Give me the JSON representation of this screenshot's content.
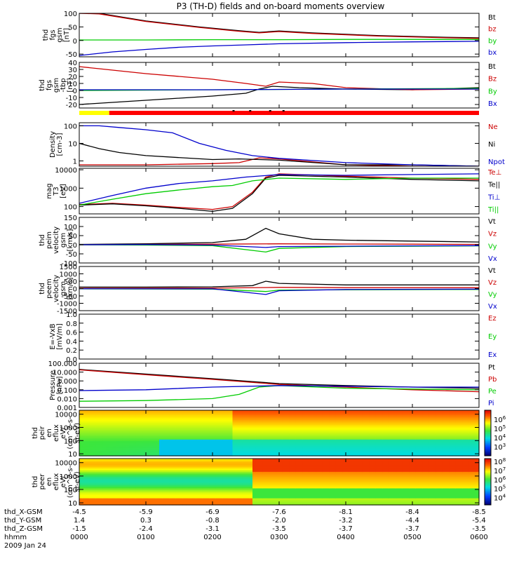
{
  "title": "P3 (TH-D) fields and on-board moments overview",
  "chart_data": [
    {
      "type": "line",
      "panel": "fgs-gsm",
      "ylabel": [
        "thd",
        "fgs",
        "gsm",
        "[nT]"
      ],
      "ylim": [
        -60,
        100
      ],
      "ticks": [
        "100",
        "50",
        "0",
        "-50"
      ],
      "tick_values": [
        100,
        50,
        0,
        -50
      ],
      "series": [
        {
          "name": "Bt",
          "color": "#000000",
          "x": [
            0.0,
            0.3,
            1.0,
            1.8,
            2.4,
            2.7,
            3.0,
            3.5,
            4.5,
            5.5,
            6.0
          ],
          "values": [
            100,
            100,
            72,
            50,
            36,
            30,
            35,
            28,
            18,
            12,
            10
          ]
        },
        {
          "name": "bz",
          "color": "#cc0000",
          "x": [
            0.0,
            0.3,
            1.0,
            1.8,
            2.4,
            2.7,
            3.0,
            3.5,
            4.5,
            5.5,
            6.0
          ],
          "values": [
            100,
            98,
            70,
            48,
            34,
            28,
            33,
            26,
            16,
            10,
            8
          ]
        },
        {
          "name": "by",
          "color": "#00cc00",
          "x": [
            0.0,
            1.0,
            2.0,
            3.0,
            4.0,
            5.0,
            6.0
          ],
          "values": [
            2,
            2,
            3,
            3,
            4,
            4,
            4
          ]
        },
        {
          "name": "bx",
          "color": "#0000cc",
          "x": [
            0.0,
            0.5,
            1.0,
            1.5,
            2.0,
            2.5,
            3.0,
            4.0,
            5.0,
            6.0
          ],
          "values": [
            -55,
            -42,
            -33,
            -25,
            -20,
            -16,
            -12,
            -8,
            -5,
            -3
          ]
        }
      ]
    },
    {
      "type": "line",
      "panel": "fgs-gsm-tbp",
      "ylabel": [
        "thd",
        "fgs",
        "gsm",
        "-tbp",
        "[nT]"
      ],
      "ylim": [
        -25,
        40
      ],
      "ticks": [
        "40",
        "30",
        "20",
        "10",
        "0",
        "-10",
        "-20"
      ],
      "tick_values": [
        40,
        30,
        20,
        10,
        0,
        -10,
        -20
      ],
      "series": [
        {
          "name": "Bt",
          "color": "#000000",
          "x": [
            0.0,
            1.0,
            2.0,
            2.5,
            2.7,
            2.9,
            3.3,
            4.0,
            5.0,
            6.0
          ],
          "values": [
            -20,
            -14,
            -8,
            -4,
            2,
            6,
            4,
            2,
            1,
            4
          ]
        },
        {
          "name": "Bz",
          "color": "#cc0000",
          "x": [
            0.0,
            0.3,
            1.0,
            2.0,
            2.5,
            2.8,
            3.0,
            3.5,
            4.0,
            5.0,
            6.0
          ],
          "values": [
            34,
            31,
            24,
            16,
            10,
            6,
            12,
            10,
            4,
            1,
            2
          ]
        },
        {
          "name": "By",
          "color": "#00cc00",
          "x": [
            0.0,
            2.0,
            4.0,
            6.0
          ],
          "values": [
            0,
            1,
            2,
            3
          ]
        },
        {
          "name": "Bx",
          "color": "#0000cc",
          "x": [
            0.0,
            2.0,
            4.0,
            6.0
          ],
          "values": [
            1,
            1,
            2,
            2
          ]
        }
      ]
    },
    {
      "type": "line",
      "panel": "density",
      "ylabel": [
        "Density",
        "[cm-3]"
      ],
      "yscale": "log",
      "ylim": [
        0.5,
        150
      ],
      "ticks": [
        "100",
        "10",
        "1"
      ],
      "tick_values": [
        100,
        10,
        1
      ],
      "series": [
        {
          "name": "Ne",
          "color": "#cc0000",
          "x": [
            0.0,
            1.0,
            2.0,
            2.4,
            2.7,
            3.0,
            4.0,
            5.0,
            6.0
          ],
          "values": [
            0.6,
            0.6,
            0.7,
            0.8,
            1.5,
            1.3,
            0.6,
            0.5,
            0.5
          ]
        },
        {
          "name": "Ni",
          "color": "#000000",
          "x": [
            0.0,
            0.3,
            0.6,
            1.0,
            2.0,
            2.4,
            3.0,
            4.0,
            5.0,
            6.0
          ],
          "values": [
            10,
            5,
            3,
            2,
            1.2,
            1.3,
            1.1,
            0.6,
            0.6,
            0.5
          ]
        },
        {
          "name": "Npot",
          "color": "#0000cc",
          "x": [
            0.0,
            0.3,
            0.6,
            1.0,
            1.4,
            1.8,
            2.2,
            2.6,
            3.0,
            4.0,
            5.0,
            6.0
          ],
          "values": [
            100,
            100,
            80,
            60,
            40,
            10,
            4,
            2,
            1.4,
            0.8,
            0.6,
            0.5
          ]
        }
      ]
    },
    {
      "type": "line",
      "panel": "temperature",
      "ylabel": [
        "mag",
        "T3",
        "[eV]"
      ],
      "yscale": "log",
      "ylim": [
        40,
        12000
      ],
      "ticks": [
        "10000",
        "1000",
        "100"
      ],
      "tick_values": [
        10000,
        1000,
        100
      ],
      "series": [
        {
          "name": "Te⊥",
          "color": "#cc0000",
          "x": [
            0.0,
            0.5,
            1.0,
            1.5,
            2.0,
            2.3,
            2.6,
            2.8,
            3.0,
            4.0,
            5.0,
            6.0
          ],
          "values": [
            130,
            150,
            120,
            90,
            70,
            100,
            600,
            4000,
            6000,
            4500,
            3500,
            3000
          ]
        },
        {
          "name": "Te||",
          "color": "#000000",
          "x": [
            0.0,
            0.5,
            1.0,
            1.5,
            2.0,
            2.3,
            2.6,
            2.8,
            3.0,
            4.0,
            5.0,
            6.0
          ],
          "values": [
            120,
            140,
            110,
            80,
            55,
            80,
            500,
            3500,
            5000,
            4000,
            3000,
            2500
          ]
        },
        {
          "name": "Ti⊥",
          "color": "#0000cc",
          "x": [
            0.0,
            0.5,
            1.0,
            1.5,
            2.0,
            2.5,
            3.0,
            4.0,
            5.0,
            6.0
          ],
          "values": [
            150,
            400,
            1000,
            1800,
            2500,
            4000,
            5500,
            5000,
            5500,
            6000
          ]
        },
        {
          "name": "Ti||",
          "color": "#00cc00",
          "x": [
            0.0,
            0.5,
            1.0,
            1.5,
            2.0,
            2.3,
            2.6,
            3.0,
            4.0,
            5.0,
            6.0
          ],
          "values": [
            120,
            250,
            500,
            800,
            1200,
            1400,
            2500,
            3500,
            3000,
            3500,
            3500
          ]
        }
      ]
    },
    {
      "type": "line",
      "panel": "peim-velocity",
      "ylabel": [
        "thd",
        "peim",
        "velocity",
        "gsm",
        "[km/s]"
      ],
      "ylim": [
        -100,
        150
      ],
      "ticks": [
        "150",
        "100",
        "50",
        "0",
        "-50",
        "-100"
      ],
      "tick_values": [
        150,
        100,
        50,
        0,
        -50,
        -100
      ],
      "series": [
        {
          "name": "Vt",
          "color": "#000000",
          "x": [
            0.0,
            1.0,
            2.0,
            2.5,
            2.8,
            3.0,
            3.5,
            4.0,
            5.0,
            6.0
          ],
          "values": [
            2,
            5,
            12,
            30,
            90,
            60,
            30,
            25,
            20,
            15
          ]
        },
        {
          "name": "Vz",
          "color": "#cc0000",
          "x": [
            0.0,
            1.0,
            2.0,
            3.0,
            4.0,
            5.0,
            6.0
          ],
          "values": [
            0,
            2,
            3,
            5,
            4,
            3,
            2
          ]
        },
        {
          "name": "Vy",
          "color": "#00cc00",
          "x": [
            0.0,
            1.0,
            2.0,
            2.8,
            3.0,
            4.0,
            5.0,
            6.0
          ],
          "values": [
            0,
            -2,
            -5,
            -40,
            -20,
            -10,
            -8,
            -6
          ]
        },
        {
          "name": "Vx",
          "color": "#0000cc",
          "x": [
            0.0,
            1.0,
            2.0,
            2.8,
            3.0,
            4.0,
            5.0,
            6.0
          ],
          "values": [
            0,
            1,
            -2,
            -15,
            -10,
            -8,
            -6,
            -5
          ]
        }
      ]
    },
    {
      "type": "line",
      "panel": "peem-velocity",
      "ylabel": [
        "thd",
        "peem",
        "velocity",
        "gsm",
        "[km/s]"
      ],
      "ylim": [
        -1500,
        1500
      ],
      "ticks": [
        "1500",
        "1000",
        "500",
        "0",
        "-500",
        "-1000",
        "-1500"
      ],
      "tick_values": [
        1500,
        1000,
        500,
        0,
        -500,
        -1000,
        -1500
      ],
      "series": [
        {
          "name": "Vt",
          "color": "#000000",
          "x": [
            0.0,
            1.0,
            2.0,
            2.6,
            2.8,
            3.0,
            4.0,
            5.0,
            6.0
          ],
          "values": [
            100,
            100,
            120,
            200,
            500,
            350,
            250,
            250,
            250
          ]
        },
        {
          "name": "Vz",
          "color": "#cc0000",
          "x": [
            0.0,
            2.0,
            3.0,
            4.0,
            6.0
          ],
          "values": [
            20,
            30,
            80,
            60,
            60
          ]
        },
        {
          "name": "Vy",
          "color": "#00cc00",
          "x": [
            0.0,
            2.0,
            2.8,
            3.0,
            4.0,
            6.0
          ],
          "values": [
            -20,
            -40,
            -200,
            -100,
            -80,
            -60
          ]
        },
        {
          "name": "Vx",
          "color": "#0000cc",
          "x": [
            0.0,
            2.0,
            2.8,
            3.0,
            4.0,
            6.0
          ],
          "values": [
            -10,
            -20,
            -400,
            -150,
            -60,
            -40
          ]
        }
      ]
    },
    {
      "type": "line",
      "panel": "e-field",
      "ylabel": [
        "E=-VxB",
        "[mV/m]"
      ],
      "ylim": [
        0,
        1.0
      ],
      "ticks": [
        "1.0",
        "0.8",
        "0.6",
        "0.4",
        "0.2",
        "0.0"
      ],
      "tick_values": [
        1.0,
        0.8,
        0.6,
        0.4,
        0.2,
        0.0
      ],
      "series": [
        {
          "name": "Ez",
          "color": "#cc0000",
          "x": [],
          "values": []
        },
        {
          "name": "Ey",
          "color": "#00cc00",
          "x": [],
          "values": []
        },
        {
          "name": "Ex",
          "color": "#0000cc",
          "x": [],
          "values": []
        }
      ]
    },
    {
      "type": "line",
      "panel": "pressure",
      "ylabel": [
        "Pressure",
        "[nPa]"
      ],
      "yscale": "log",
      "ylim": [
        0.001,
        100
      ],
      "ticks": [
        "100.000",
        "10.000",
        "1.000",
        "0.100",
        "0.010",
        "0.001"
      ],
      "tick_values": [
        100,
        10,
        1,
        0.1,
        0.01,
        0.001
      ],
      "series": [
        {
          "name": "Pt",
          "color": "#000000",
          "x": [
            0.0,
            1.0,
            2.0,
            3.0,
            4.0,
            5.0,
            6.0
          ],
          "values": [
            20,
            6,
            1.8,
            0.5,
            0.3,
            0.2,
            0.15
          ]
        },
        {
          "name": "Pb",
          "color": "#cc0000",
          "x": [
            0.0,
            1.0,
            2.0,
            3.0,
            4.0,
            5.0,
            6.0
          ],
          "values": [
            18,
            5,
            1.5,
            0.4,
            0.2,
            0.1,
            0.06
          ]
        },
        {
          "name": "Pe",
          "color": "#00cc00",
          "x": [
            0.0,
            1.0,
            2.0,
            2.4,
            2.7,
            3.0,
            4.0,
            5.0,
            6.0
          ],
          "values": [
            0.005,
            0.006,
            0.01,
            0.03,
            0.2,
            0.3,
            0.15,
            0.12,
            0.1
          ]
        },
        {
          "name": "Pi",
          "color": "#0000cc",
          "x": [
            0.0,
            1.0,
            2.0,
            3.0,
            4.0,
            5.0,
            6.0
          ],
          "values": [
            0.08,
            0.1,
            0.2,
            0.3,
            0.25,
            0.2,
            0.2
          ]
        }
      ]
    },
    {
      "type": "heatmap",
      "panel": "peir-en-eflux",
      "ylabel": [
        "thd",
        "peir",
        "en",
        "eflux",
        "eV/",
        "(cm^2-s-",
        "sr-eV)"
      ],
      "yscale": "log",
      "ylim": [
        7,
        20000
      ],
      "ticks": [
        "10000",
        "1000",
        "100",
        "10"
      ],
      "tick_values": [
        10000,
        1000,
        100,
        10
      ],
      "colorbar": {
        "labels": [
          "10^6",
          "10^5",
          "10^4",
          "10^3"
        ],
        "range": [
          2,
          7
        ]
      }
    },
    {
      "type": "heatmap",
      "panel": "peer-en-eflux",
      "ylabel": [
        "thd",
        "peer",
        "en",
        "eflux",
        "eV/",
        "(cm^2-s-",
        "sr-eV)"
      ],
      "yscale": "log",
      "ylim": [
        7,
        20000
      ],
      "ticks": [
        "10000",
        "1000",
        "100",
        "10"
      ],
      "tick_values": [
        10000,
        1000,
        100,
        10
      ],
      "colorbar": {
        "labels": [
          "10^8",
          "10^7",
          "10^6",
          "10^5",
          "10^4"
        ],
        "range": [
          3.2,
          8.3
        ]
      }
    }
  ],
  "legends": [
    [
      "Bt",
      "bz",
      "by",
      "bx"
    ],
    [
      "Bt",
      "Bz",
      "By",
      "Bx"
    ],
    [
      "Ne",
      "Ni",
      "Npot"
    ],
    [
      "Te⊥",
      "Te||",
      "Ti⊥",
      "Ti||"
    ],
    [
      "Vt",
      "Vz",
      "Vy",
      "Vx"
    ],
    [
      "Vt",
      "Vz",
      "Vy",
      "Vx"
    ],
    [
      "Ez",
      "Ey",
      "Ex"
    ],
    [
      "Pt",
      "Pb",
      "Pe",
      "Pi"
    ]
  ],
  "colors": {
    "black": "#000000",
    "red": "#cc0000",
    "green": "#00cc00",
    "blue": "#0000cc",
    "yellow": "#ffff00",
    "flag_red": "#ff0000"
  },
  "xaxis": {
    "labels": [
      "thd_X-GSM",
      "thd_Y-GSM",
      "thd_Z-GSM",
      "hhmm",
      "2009 Jan 24"
    ],
    "rows": [
      [
        "-4.5",
        "-5.9",
        "-6.9",
        "-7.6",
        "-8.1",
        "-8.4",
        "-8.5"
      ],
      [
        "1.4",
        "0.3",
        "-0.8",
        "-2.0",
        "-3.2",
        "-4.4",
        "-5.4"
      ],
      [
        "-1.5",
        "-2.4",
        "-3.1",
        "-3.5",
        "-3.7",
        "-3.7",
        "-3.5"
      ],
      [
        "0000",
        "0100",
        "0200",
        "0300",
        "0400",
        "0500",
        "0600"
      ]
    ]
  }
}
